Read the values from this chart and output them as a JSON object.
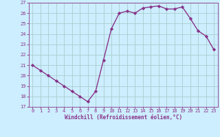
{
  "x": [
    0,
    1,
    2,
    3,
    4,
    5,
    6,
    7,
    8,
    9,
    10,
    11,
    12,
    13,
    14,
    15,
    16,
    17,
    18,
    19,
    20,
    21,
    22,
    23
  ],
  "y": [
    21.0,
    20.5,
    20.0,
    19.5,
    19.0,
    18.5,
    18.0,
    17.5,
    18.5,
    21.5,
    24.5,
    26.0,
    26.2,
    26.0,
    26.5,
    26.6,
    26.7,
    26.4,
    26.4,
    26.6,
    25.5,
    24.3,
    23.8,
    22.5
  ],
  "line_color": "#883388",
  "marker": "D",
  "marker_size": 2.2,
  "bg_color": "#cceeff",
  "grid_color": "#aacccc",
  "xlabel": "Windchill (Refroidissement éolien,°C)",
  "xlabel_color": "#883388",
  "tick_color": "#883388",
  "ylim": [
    17,
    27
  ],
  "xlim": [
    -0.5,
    23.5
  ],
  "yticks": [
    17,
    18,
    19,
    20,
    21,
    22,
    23,
    24,
    25,
    26,
    27
  ],
  "xticks": [
    0,
    1,
    2,
    3,
    4,
    5,
    6,
    7,
    8,
    9,
    10,
    11,
    12,
    13,
    14,
    15,
    16,
    17,
    18,
    19,
    20,
    21,
    22,
    23
  ],
  "linewidth": 1.0,
  "label_fontsize": 5.5,
  "tick_fontsize": 5.0
}
